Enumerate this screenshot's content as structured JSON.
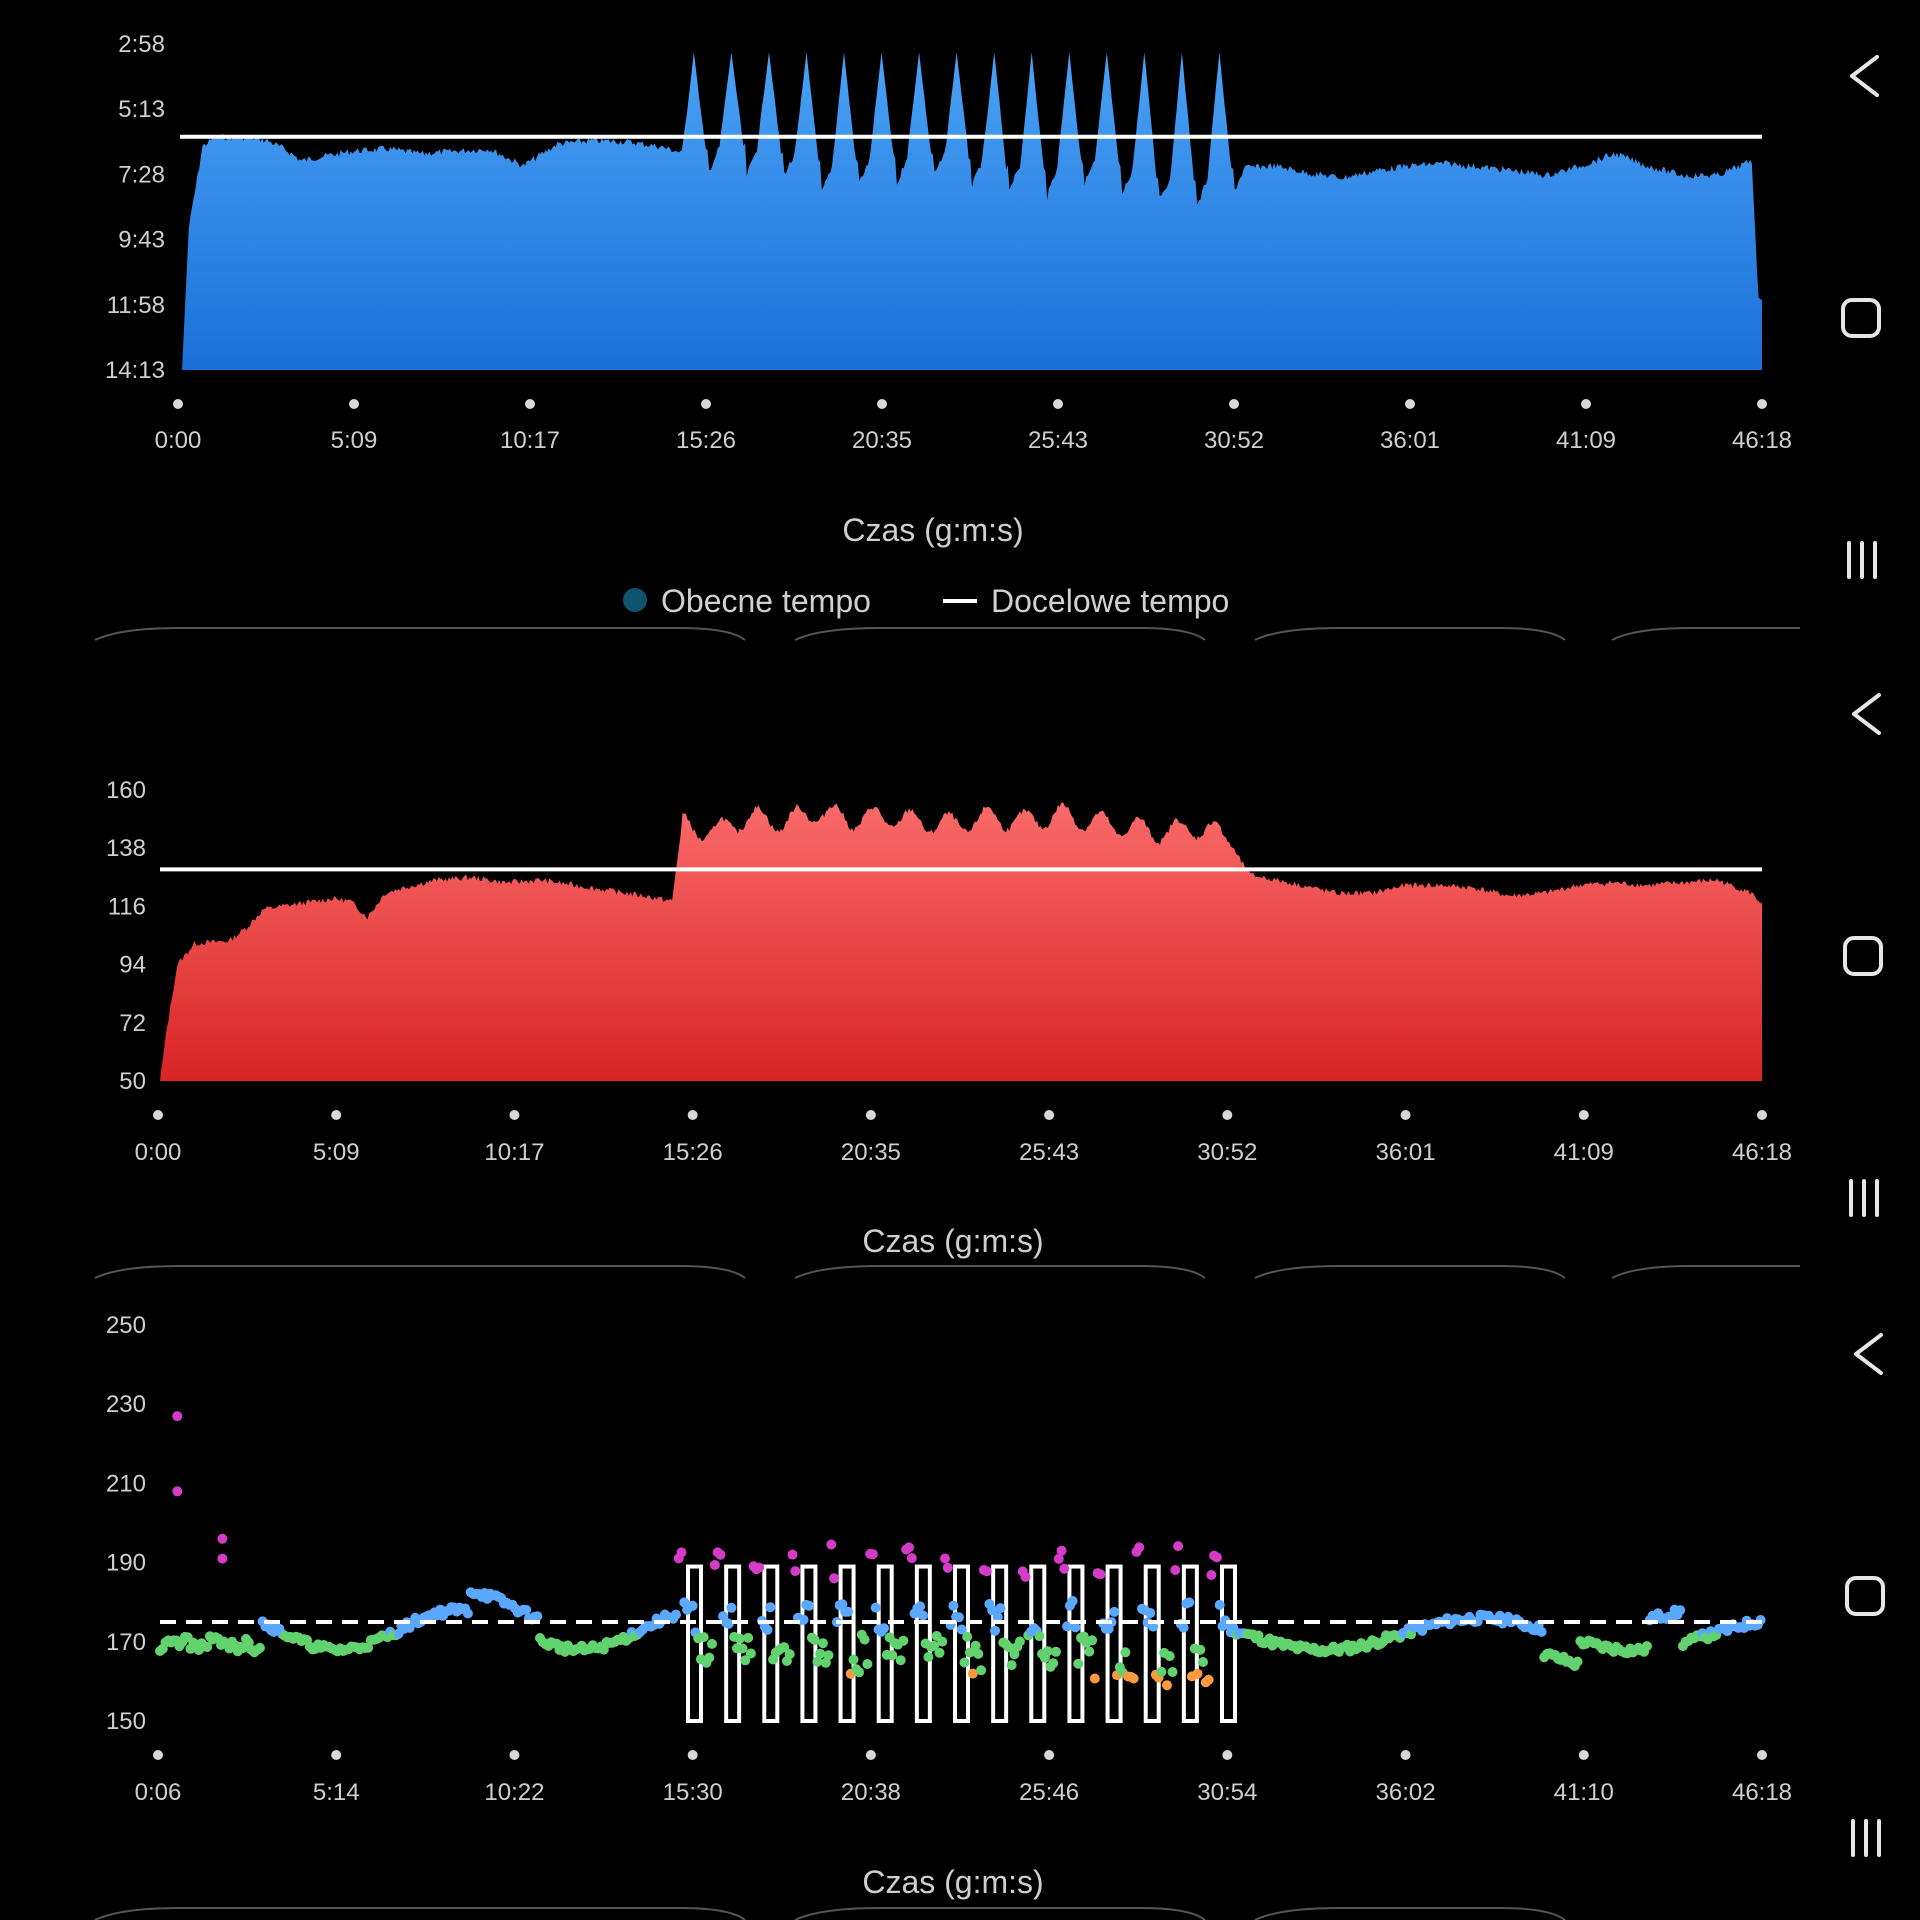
{
  "charts": [
    {
      "id": "pace",
      "type": "area",
      "y_ticks": [
        "2:58",
        "5:13",
        "7:28",
        "9:43",
        "11:58",
        "14:13"
      ],
      "x_ticks": [
        "0:00",
        "5:09",
        "10:17",
        "15:26",
        "20:35",
        "25:43",
        "30:52",
        "36:01",
        "41:09",
        "46:18"
      ],
      "xlabel": "Czas (g:m:s)",
      "legend": [
        {
          "label": "Obecne tempo",
          "color": "#0e5670",
          "marker": "dot"
        },
        {
          "label": "Docelowe tempo",
          "color": "#ffffff",
          "marker": "line"
        }
      ],
      "fill_colors": [
        "#4aa2f5",
        "#1b6fd8"
      ]
    },
    {
      "id": "heart-rate",
      "type": "area",
      "y_ticks": [
        "160",
        "138",
        "116",
        "94",
        "72",
        "50"
      ],
      "x_ticks": [
        "0:00",
        "5:09",
        "10:17",
        "15:26",
        "20:35",
        "25:43",
        "30:52",
        "36:01",
        "41:09",
        "46:18"
      ],
      "xlabel": "Czas (g:m:s)",
      "fill_colors": [
        "#fa6a6a",
        "#d92424"
      ]
    },
    {
      "id": "cadence",
      "type": "scatter",
      "y_ticks": [
        "250",
        "230",
        "210",
        "190",
        "170",
        "150"
      ],
      "x_ticks": [
        "0:06",
        "5:14",
        "10:22",
        "15:30",
        "20:38",
        "25:46",
        "30:54",
        "36:02",
        "41:10",
        "46:18"
      ],
      "xlabel": "Czas (g:m:s)",
      "point_colors": {
        "magenta": "#d43cc8",
        "blue": "#5aa8ff",
        "green": "#62d26e",
        "orange": "#ff9a3c"
      }
    }
  ],
  "chart_data": [
    {
      "type": "area",
      "ylabel": "",
      "xlabel": "Czas (g:m:s)",
      "ylim_seconds": [
        178,
        853
      ],
      "y_inverted": true,
      "x_unit": "minutes",
      "xlim": [
        0,
        46.3
      ],
      "series": [
        {
          "name": "Obecne tempo",
          "points": [
            [
              0,
              853
            ],
            [
              0.2,
              560
            ],
            [
              0.6,
              390
            ],
            [
              1.0,
              370
            ],
            [
              2,
              372
            ],
            [
              2.5,
              378
            ],
            [
              3,
              395
            ],
            [
              3.5,
              420
            ],
            [
              4,
              412
            ],
            [
              5,
              400
            ],
            [
              6,
              395
            ],
            [
              7,
              405
            ],
            [
              8,
              400
            ],
            [
              9,
              395
            ],
            [
              10,
              430
            ],
            [
              11,
              385
            ],
            [
              12,
              378
            ],
            [
              13,
              380
            ],
            [
              14,
              390
            ],
            [
              15,
              410
            ],
            [
              16,
              385
            ],
            [
              17,
              395
            ],
            [
              18,
              410
            ],
            [
              19,
              430
            ],
            [
              20,
              420
            ],
            [
              21,
              410
            ],
            [
              22,
              405
            ],
            [
              23,
              410
            ],
            [
              24,
              430
            ],
            [
              25,
              440
            ],
            [
              26,
              425
            ],
            [
              27,
              420
            ],
            [
              28,
              440
            ],
            [
              29,
              460
            ],
            [
              30,
              455
            ],
            [
              31,
              435
            ],
            [
              32,
              430
            ],
            [
              33,
              445
            ],
            [
              34,
              455
            ],
            [
              35,
              440
            ],
            [
              36,
              430
            ],
            [
              37,
              425
            ],
            [
              38,
              432
            ],
            [
              39,
              440
            ],
            [
              40,
              450
            ],
            [
              41,
              430
            ],
            [
              42,
              405
            ],
            [
              43,
              432
            ],
            [
              44,
              450
            ],
            [
              45,
              450
            ],
            [
              46,
              420
            ],
            [
              46.3,
              853
            ]
          ],
          "spikes_at_minutes": [
            15.0,
            16.1,
            17.2,
            18.3,
            19.4,
            20.5,
            21.6,
            22.7,
            23.8,
            24.9,
            26.0,
            27.1,
            28.2,
            29.3,
            30.4
          ],
          "spike_value_seconds": 195
        }
      ],
      "target_seconds": 370
    },
    {
      "type": "area",
      "ylim": [
        50,
        160
      ],
      "x_unit": "minutes",
      "xlim": [
        0,
        46.3
      ],
      "series": [
        {
          "name": "",
          "points": [
            [
              0,
              50
            ],
            [
              0.2,
              70
            ],
            [
              0.5,
              94
            ],
            [
              1,
              102
            ],
            [
              2,
              103
            ],
            [
              2.5,
              108
            ],
            [
              3,
              115
            ],
            [
              4,
              117
            ],
            [
              5,
              119
            ],
            [
              5.5,
              118
            ],
            [
              6,
              112
            ],
            [
              6.5,
              121
            ],
            [
              7,
              123
            ],
            [
              8,
              126
            ],
            [
              9,
              127
            ],
            [
              10,
              125
            ],
            [
              11,
              126
            ],
            [
              12,
              124
            ],
            [
              13,
              122
            ],
            [
              14,
              120
            ],
            [
              14.8,
              118
            ],
            [
              15.1,
              149
            ],
            [
              16,
              146
            ],
            [
              17,
              152
            ],
            [
              18,
              150
            ],
            [
              19,
              154
            ],
            [
              20,
              151
            ],
            [
              21,
              152
            ],
            [
              22,
              150
            ],
            [
              23,
              149
            ],
            [
              24,
              152
            ],
            [
              25,
              150
            ],
            [
              26,
              153
            ],
            [
              27,
              150
            ],
            [
              28,
              148
            ],
            [
              29,
              146
            ],
            [
              30,
              148
            ],
            [
              30.6,
              146
            ],
            [
              31.5,
              128
            ],
            [
              33,
              124
            ],
            [
              34,
              121
            ],
            [
              35,
              121
            ],
            [
              36,
              124
            ],
            [
              37,
              124
            ],
            [
              38,
              123
            ],
            [
              39,
              120
            ],
            [
              40,
              121
            ],
            [
              41,
              124
            ],
            [
              42,
              125
            ],
            [
              43,
              124
            ],
            [
              44,
              125
            ],
            [
              45,
              126
            ],
            [
              46,
              121
            ],
            [
              46.3,
              117
            ],
            [
              46.3,
              50
            ]
          ]
        }
      ],
      "target": 130
    },
    {
      "type": "scatter",
      "ylim": [
        150,
        250
      ],
      "x_unit": "minutes",
      "xlim": [
        0.1,
        46.3
      ],
      "target": 175,
      "intervals_minutes": [
        15.0,
        16.1,
        17.2,
        18.3,
        19.4,
        20.5,
        21.6,
        22.7,
        23.8,
        24.9,
        26.0,
        27.1,
        28.2,
        29.3,
        30.4
      ],
      "interval_range": [
        150,
        189
      ]
    }
  ]
}
